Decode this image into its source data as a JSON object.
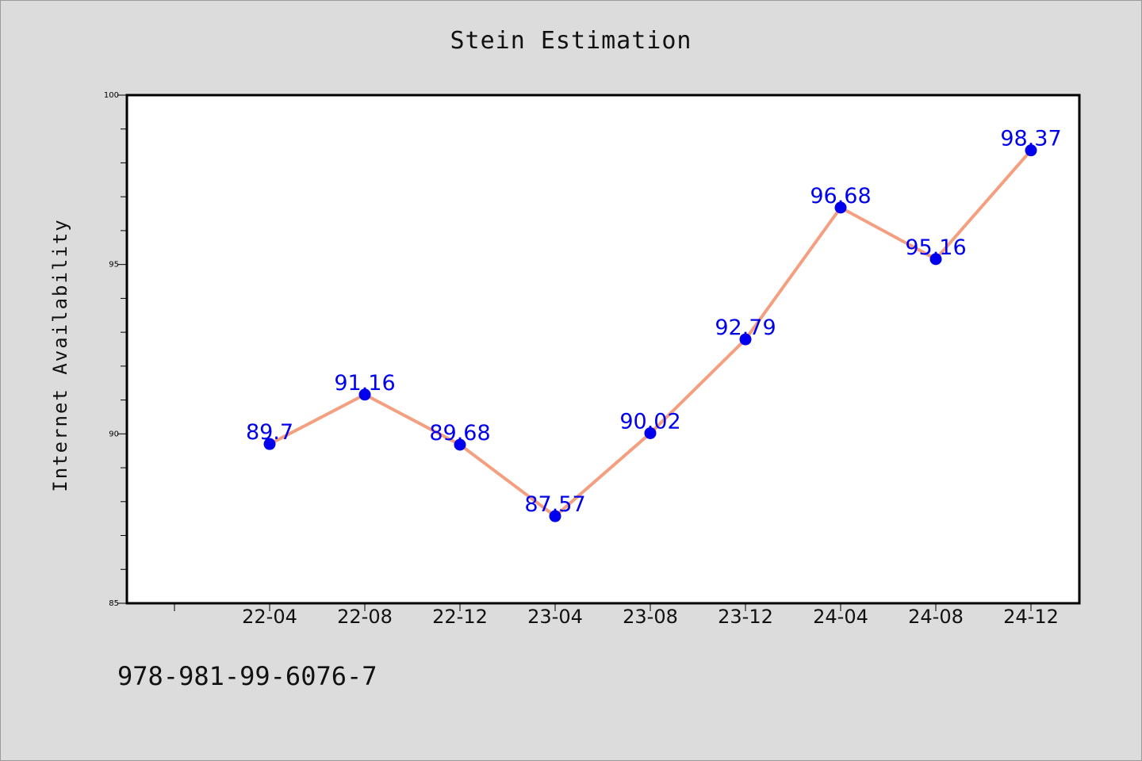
{
  "chart_data": {
    "type": "line",
    "title": "Stein Estimation",
    "xlabel": "",
    "ylabel": "Internet Availability",
    "categories": [
      "22-04",
      "22-08",
      "22-12",
      "23-04",
      "23-08",
      "23-12",
      "24-04",
      "24-08",
      "24-12"
    ],
    "series": [
      {
        "values": [
          89.7,
          91.16,
          89.68,
          87.57,
          90.02,
          92.79,
          96.68,
          95.16,
          98.37
        ],
        "labels": [
          "89.7",
          "91.16",
          "89.68",
          "87.57",
          "90.02",
          "92.79",
          "96.68",
          "95.16",
          "98.37"
        ],
        "line_color": "#f4a080",
        "marker_color": "#0000ee"
      }
    ],
    "ylim": [
      85,
      100
    ],
    "y_ticks": [
      85,
      90,
      95,
      100
    ],
    "grid": false,
    "legend": "none"
  },
  "footer": {
    "code": "978-981-99-6076-7"
  }
}
